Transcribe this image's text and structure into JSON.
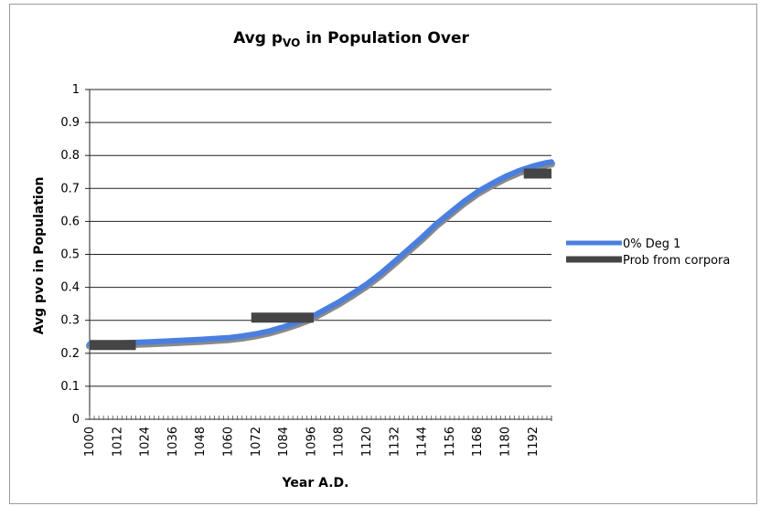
{
  "chart_data": {
    "type": "line",
    "title": {
      "prefix": "Avg p",
      "subscript": "VO",
      "suffix": " in Population Over"
    },
    "xlabel": "Year A.D.",
    "ylabel": "Avg pvo in Population",
    "xlim": [
      1000,
      1200
    ],
    "ylim": [
      0,
      1
    ],
    "yticks": [
      "0",
      "0.1",
      "0.2",
      "0.3",
      "0.4",
      "0.5",
      "0.6",
      "0.7",
      "0.8",
      "0.9",
      "1"
    ],
    "xticks": [
      "1000",
      "1012",
      "1024",
      "1036",
      "1048",
      "1060",
      "1072",
      "1084",
      "1096",
      "1108",
      "1120",
      "1132",
      "1144",
      "1156",
      "1168",
      "1180",
      "1192"
    ],
    "grid": "horizontal",
    "legend_position": "right",
    "series": [
      {
        "name": "0% Deg 1",
        "color": "#4a7fe0",
        "style": "line",
        "x": [
          1000,
          1012,
          1024,
          1036,
          1048,
          1060,
          1066,
          1072,
          1078,
          1084,
          1090,
          1096,
          1102,
          1108,
          1114,
          1120,
          1126,
          1132,
          1138,
          1144,
          1150,
          1156,
          1162,
          1168,
          1174,
          1180,
          1186,
          1192,
          1198,
          1200
        ],
        "y": [
          0.228,
          0.231,
          0.234,
          0.238,
          0.242,
          0.247,
          0.252,
          0.259,
          0.268,
          0.28,
          0.294,
          0.31,
          0.333,
          0.356,
          0.382,
          0.41,
          0.442,
          0.478,
          0.515,
          0.552,
          0.592,
          0.626,
          0.66,
          0.69,
          0.714,
          0.736,
          0.754,
          0.768,
          0.778,
          0.78
        ]
      },
      {
        "name": "Prob from corpora",
        "color": "#454545",
        "style": "segments",
        "segments": [
          {
            "x": [
              1000,
              1020
            ],
            "y": 0.225
          },
          {
            "x": [
              1070,
              1097
            ],
            "y": 0.308
          },
          {
            "x": [
              1188,
              1200
            ],
            "y": 0.745
          }
        ]
      }
    ]
  }
}
